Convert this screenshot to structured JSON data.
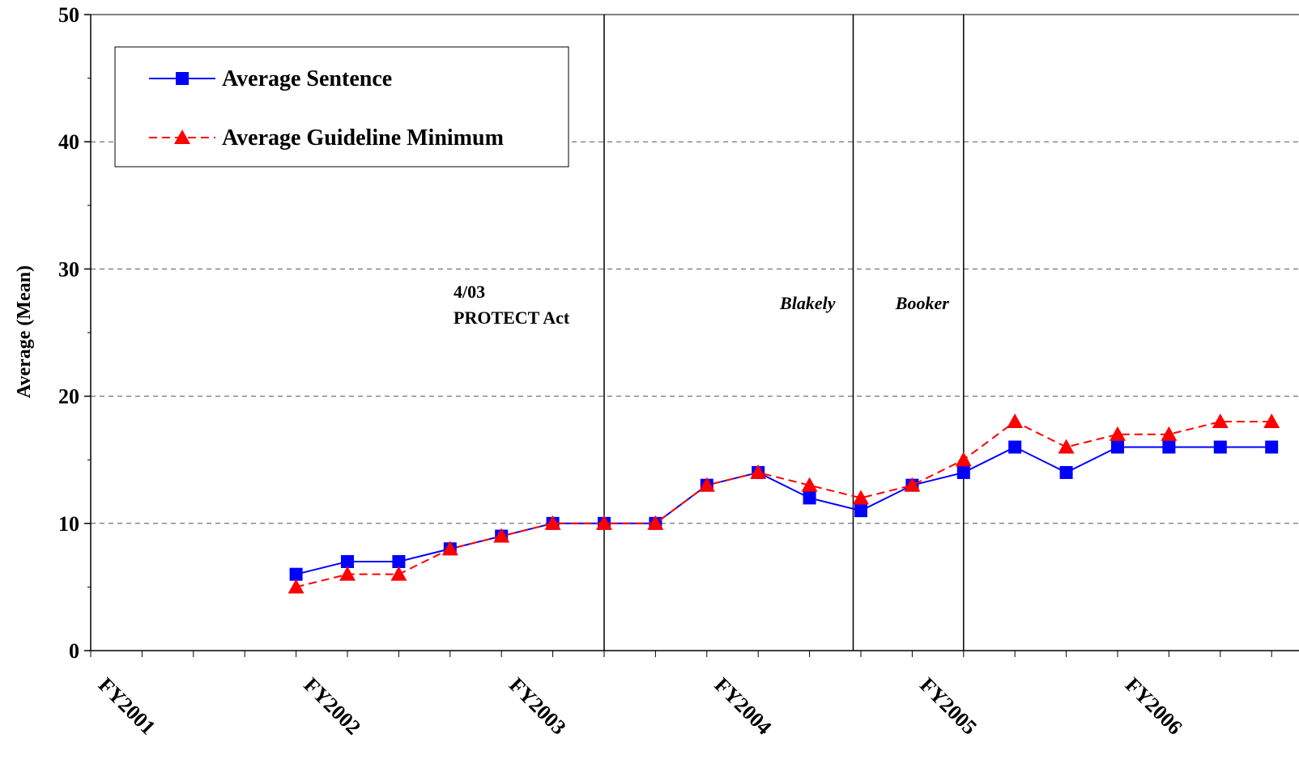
{
  "chart_data": {
    "type": "line",
    "title": "",
    "xlabel": "",
    "ylabel": "Average (Mean)",
    "ylim": [
      0,
      50
    ],
    "yticks": [
      0,
      10,
      20,
      30,
      40,
      50
    ],
    "grid": "horizontal dashed",
    "legend_position": "top-left",
    "x": [
      0,
      1,
      2,
      3,
      4,
      5,
      6,
      7,
      8,
      9,
      10,
      11,
      12,
      13,
      14,
      15,
      16,
      17,
      18,
      19,
      20,
      21,
      22,
      23
    ],
    "x_tick_labels": [
      {
        "x": 0,
        "label": "FY2001"
      },
      {
        "x": 4,
        "label": "FY2002"
      },
      {
        "x": 8,
        "label": "FY2003"
      },
      {
        "x": 12,
        "label": "FY2004"
      },
      {
        "x": 16,
        "label": "FY2005"
      },
      {
        "x": 20,
        "label": "FY2006"
      }
    ],
    "series": [
      {
        "name": "Average Sentence",
        "color": "#0000ff",
        "marker": "square",
        "line": "solid",
        "values": [
          null,
          null,
          null,
          null,
          6,
          7,
          7,
          8,
          9,
          10,
          10,
          10,
          13,
          14,
          12,
          11,
          13,
          14,
          16,
          14,
          16,
          16,
          16,
          16
        ]
      },
      {
        "name": "Average Guideline Minimum",
        "color": "#ff0000",
        "marker": "triangle",
        "line": "dashed",
        "values": [
          null,
          null,
          null,
          null,
          5,
          6,
          6,
          8,
          9,
          10,
          10,
          10,
          13,
          14,
          13,
          12,
          13,
          15,
          18,
          16,
          17,
          17,
          18,
          18
        ]
      }
    ],
    "event_lines": [
      {
        "x": 10.0,
        "label_lines": [
          "4/03",
          "PROTECT Act"
        ],
        "italic": false
      },
      {
        "x": 14.85,
        "label_lines": [
          "Blakely"
        ],
        "italic": true
      },
      {
        "x": 17.0,
        "label_lines": [
          "Booker"
        ],
        "italic": true
      }
    ]
  }
}
